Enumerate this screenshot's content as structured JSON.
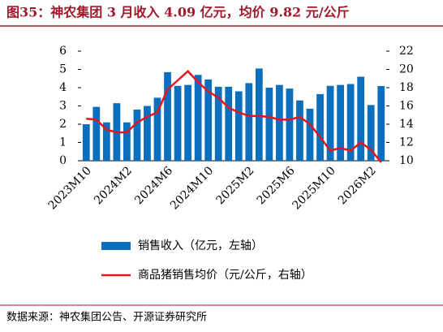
{
  "title": "图35：神农集团 3 月收入 4.09 亿元，均价 9.82 元/公斤",
  "source": "数据来源：神农集团公告、开源证券研究所",
  "chart_data": {
    "type": "bar-line",
    "categories": [
      "2023M10",
      null,
      null,
      null,
      "2024M2",
      null,
      null,
      null,
      "2024M6",
      null,
      null,
      null,
      "2024M10",
      null,
      null,
      null,
      "2025M2",
      null,
      null,
      null,
      "2025M6",
      null,
      null,
      null,
      "2025M10",
      null,
      null,
      null,
      "2026M2",
      null
    ],
    "series": [
      {
        "name": "销售收入（亿元，左轴）",
        "color": "#0b6fbe",
        "type": "bar",
        "axis": "y",
        "values": [
          2.0,
          2.95,
          2.1,
          3.15,
          2.1,
          2.8,
          3.0,
          3.45,
          4.85,
          4.1,
          4.15,
          4.7,
          4.45,
          4.05,
          4.05,
          3.8,
          4.25,
          5.05,
          4.0,
          4.15,
          3.95,
          3.3,
          2.85,
          3.65,
          4.1,
          4.15,
          4.2,
          4.6,
          3.05,
          4.09
        ]
      },
      {
        "name": "商品猪销售均价（元/公斤，右轴）",
        "color": "#e8141c",
        "type": "line",
        "axis": "y2",
        "values": [
          14.6,
          14.5,
          13.4,
          13.1,
          13.1,
          14.2,
          14.8,
          15.3,
          17.8,
          18.8,
          19.8,
          18.6,
          17.6,
          16.9,
          15.8,
          15.3,
          14.9,
          14.9,
          14.8,
          14.5,
          14.5,
          14.8,
          14.0,
          12.6,
          11.1,
          11.4,
          11.1,
          12.0,
          11.2,
          9.82
        ]
      }
    ],
    "ylim": [
      0,
      6
    ],
    "yticks": [
      0,
      1,
      2,
      3,
      4,
      5,
      6
    ],
    "y2lim": [
      10,
      22
    ],
    "y2ticks": [
      10,
      12,
      14,
      16,
      18,
      20,
      22
    ]
  }
}
